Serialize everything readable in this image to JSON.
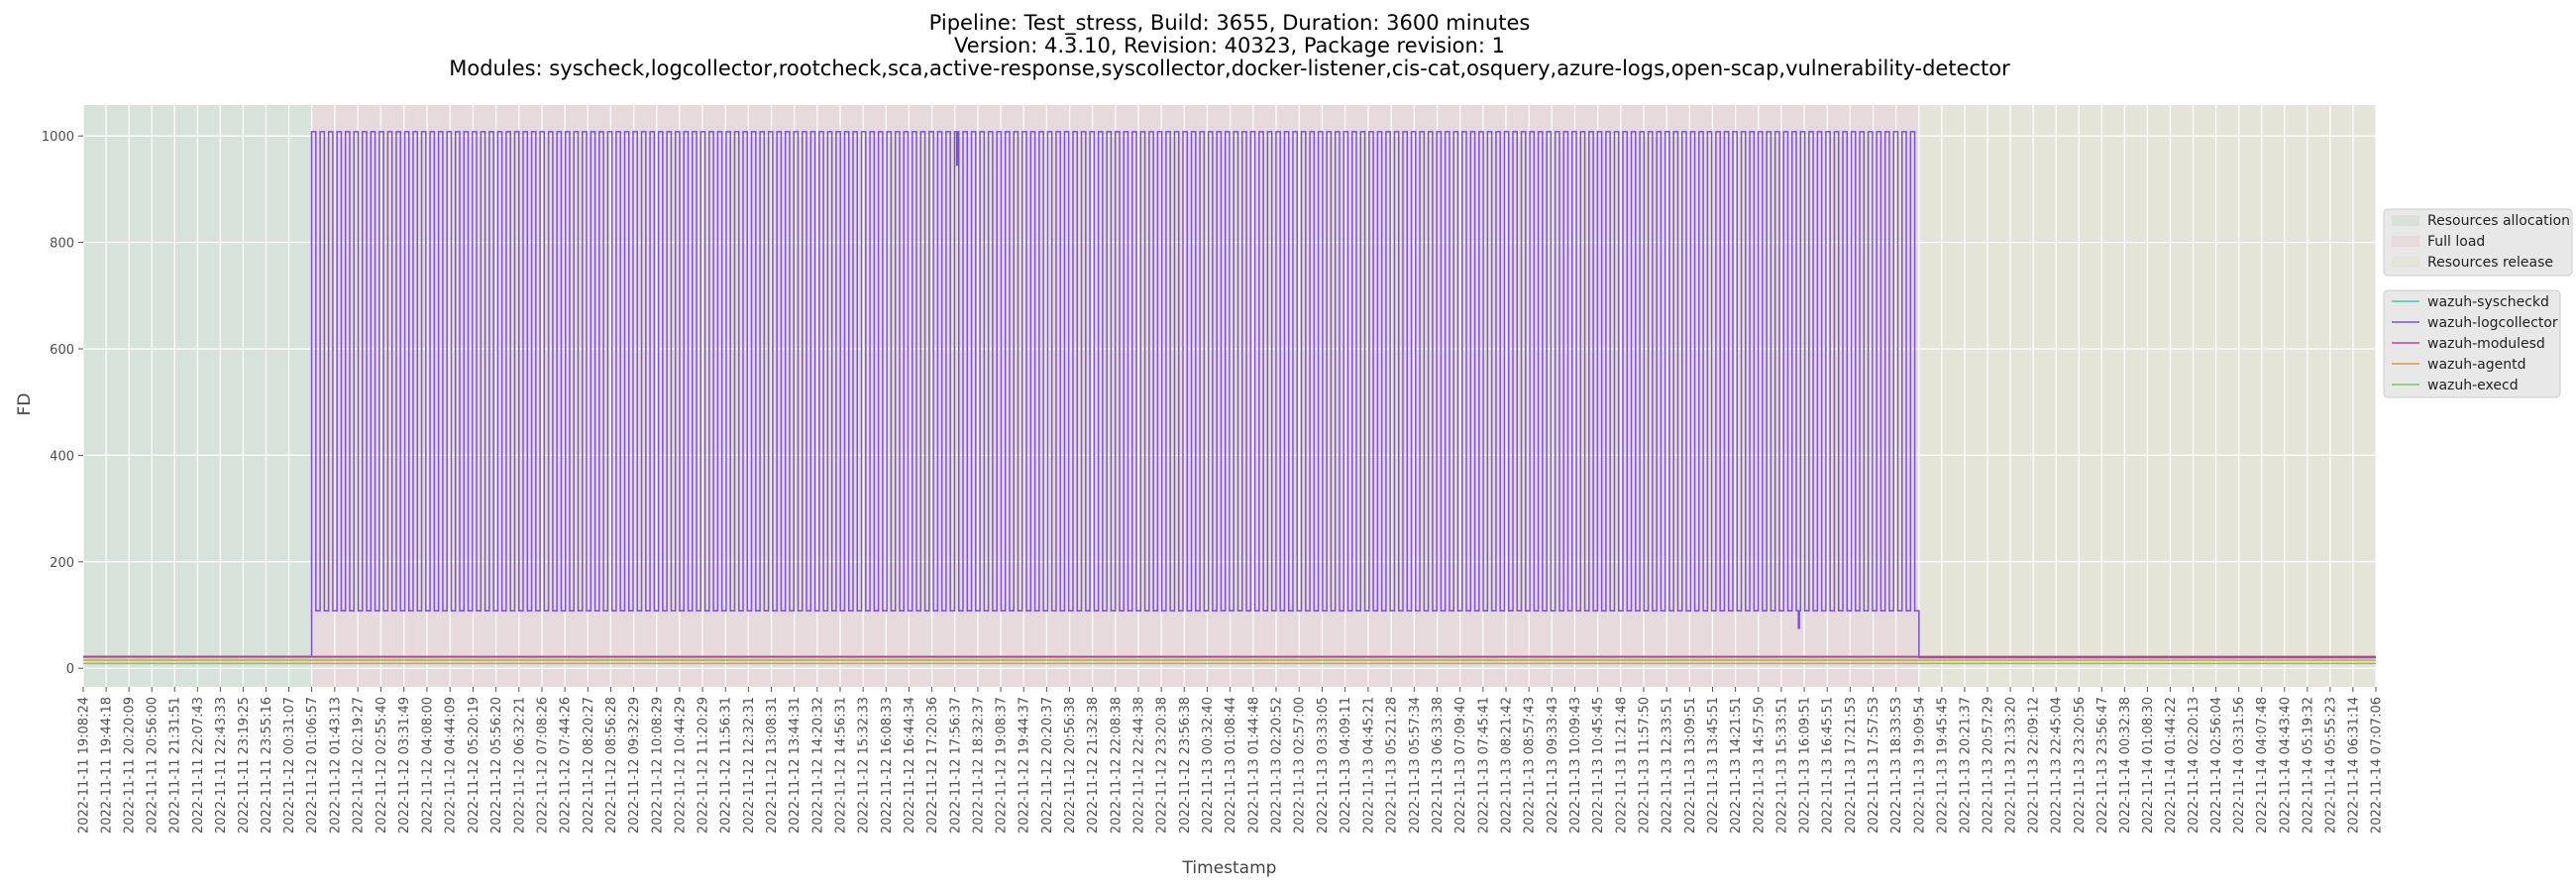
{
  "chart_data": {
    "type": "line",
    "title_lines": [
      "Pipeline: Test_stress, Build: 3655, Duration: 3600 minutes",
      "Version: 4.3.10, Revision: 40323, Package revision: 1",
      "Modules: syscheck,logcollector,rootcheck,sca,active-response,syscollector,docker-listener,cis-cat,osquery,azure-logs,open-scap,vulnerability-detector"
    ],
    "xlabel": "Timestamp",
    "ylabel": "FD",
    "ylim": [
      -35,
      1058
    ],
    "yticks": [
      0,
      200,
      400,
      600,
      800,
      1000
    ],
    "grid": true,
    "legend_placement": "right",
    "x_tick_labels": [
      "2022-11-11 19:08:24",
      "2022-11-11 19:44:18",
      "2022-11-11 20:20:09",
      "2022-11-11 20:56:00",
      "2022-11-11 21:31:51",
      "2022-11-11 22:07:43",
      "2022-11-11 22:43:33",
      "2022-11-11 23:19:25",
      "2022-11-11 23:55:16",
      "2022-11-12 00:31:07",
      "2022-11-12 01:06:57",
      "2022-11-12 01:43:13",
      "2022-11-12 02:19:27",
      "2022-11-12 02:55:40",
      "2022-11-12 03:31:49",
      "2022-11-12 04:08:00",
      "2022-11-12 04:44:09",
      "2022-11-12 05:20:19",
      "2022-11-12 05:56:20",
      "2022-11-12 06:32:21",
      "2022-11-12 07:08:26",
      "2022-11-12 07:44:26",
      "2022-11-12 08:20:27",
      "2022-11-12 08:56:28",
      "2022-11-12 09:32:29",
      "2022-11-12 10:08:29",
      "2022-11-12 10:44:29",
      "2022-11-12 11:20:29",
      "2022-11-12 11:56:31",
      "2022-11-12 12:32:31",
      "2022-11-12 13:08:31",
      "2022-11-12 13:44:31",
      "2022-11-12 14:20:32",
      "2022-11-12 14:56:31",
      "2022-11-12 15:32:33",
      "2022-11-12 16:08:33",
      "2022-11-12 16:44:34",
      "2022-11-12 17:20:36",
      "2022-11-12 17:56:37",
      "2022-11-12 18:32:37",
      "2022-11-12 19:08:37",
      "2022-11-12 19:44:37",
      "2022-11-12 20:20:37",
      "2022-11-12 20:56:38",
      "2022-11-12 21:32:38",
      "2022-11-12 22:08:38",
      "2022-11-12 22:44:38",
      "2022-11-12 23:20:38",
      "2022-11-12 23:56:38",
      "2022-11-13 00:32:40",
      "2022-11-13 01:08:44",
      "2022-11-13 01:44:48",
      "2022-11-13 02:20:52",
      "2022-11-13 02:57:00",
      "2022-11-13 03:33:05",
      "2022-11-13 04:09:11",
      "2022-11-13 04:45:21",
      "2022-11-13 05:21:28",
      "2022-11-13 05:57:34",
      "2022-11-13 06:33:38",
      "2022-11-13 07:09:40",
      "2022-11-13 07:45:41",
      "2022-11-13 08:21:42",
      "2022-11-13 08:57:43",
      "2022-11-13 09:33:43",
      "2022-11-13 10:09:43",
      "2022-11-13 10:45:45",
      "2022-11-13 11:21:48",
      "2022-11-13 11:57:50",
      "2022-11-13 12:33:51",
      "2022-11-13 13:09:51",
      "2022-11-13 13:45:51",
      "2022-11-13 14:21:51",
      "2022-11-13 14:57:50",
      "2022-11-13 15:33:51",
      "2022-11-13 16:09:51",
      "2022-11-13 16:45:51",
      "2022-11-13 17:21:53",
      "2022-11-13 17:57:53",
      "2022-11-13 18:33:53",
      "2022-11-13 19:09:54",
      "2022-11-13 19:45:45",
      "2022-11-13 20:21:37",
      "2022-11-13 20:57:29",
      "2022-11-13 21:33:20",
      "2022-11-13 22:09:12",
      "2022-11-13 22:45:04",
      "2022-11-13 23:20:56",
      "2022-11-13 23:56:47",
      "2022-11-14 00:32:38",
      "2022-11-14 01:08:30",
      "2022-11-14 01:44:22",
      "2022-11-14 02:20:13",
      "2022-11-14 02:56:04",
      "2022-11-14 03:31:56",
      "2022-11-14 04:07:48",
      "2022-11-14 04:43:40",
      "2022-11-14 05:19:32",
      "2022-11-14 05:55:23",
      "2022-11-14 06:31:14",
      "2022-11-14 07:07:06"
    ],
    "phases": [
      {
        "name": "Resources allocation",
        "start": "2022-11-11 19:08:24",
        "end": "2022-11-12 01:06:57",
        "color": "#d7e2da"
      },
      {
        "name": "Full load",
        "start": "2022-11-12 01:06:57",
        "end": "2022-11-13 19:09:54",
        "color": "#e6dadd"
      },
      {
        "name": "Resources release",
        "start": "2022-11-13 19:09:54",
        "end": "2022-11-14 07:07:06",
        "color": "#e4e5d8"
      }
    ],
    "series": [
      {
        "name": "wazuh-syscheckd",
        "color": "#48c9b0",
        "baseline": 20
      },
      {
        "name": "wazuh-logcollector",
        "color": "#7b52d6",
        "baseline": 20,
        "pre_full_load_value": 22,
        "full_load_high": 1008,
        "full_load_low": 108,
        "full_load_cycles": 190,
        "post_full_load_value": 20,
        "dips": [
          {
            "cycle": 76,
            "level": "high",
            "value": 945
          },
          {
            "cycle": 175,
            "level": "low",
            "value": 75
          }
        ]
      },
      {
        "name": "wazuh-modulesd",
        "color": "#c0448f",
        "baseline": 22
      },
      {
        "name": "wazuh-agentd",
        "color": "#e39a2c",
        "baseline": 15
      },
      {
        "name": "wazuh-execd",
        "color": "#7cc860",
        "baseline": 9
      }
    ]
  }
}
